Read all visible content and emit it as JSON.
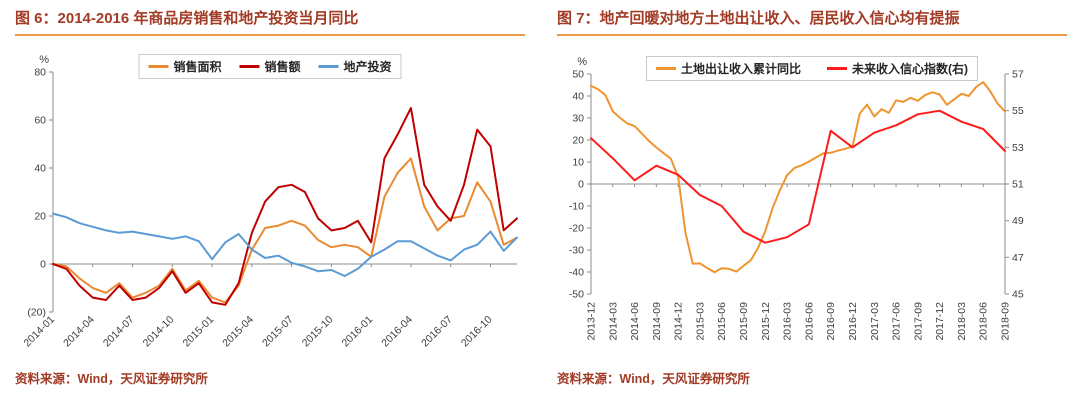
{
  "page": {
    "background": "#ffffff",
    "accent_rule_color": "#E89B49",
    "title_color": "#A23B25",
    "axis_text_color": "#404040",
    "axis_line_color": "#8c8c8c"
  },
  "footer": {
    "source_text": "资料来源：Wind，天风证券研究所"
  },
  "chart_data": [
    {
      "type": "line",
      "title": "图 6：2014-2016 年商品房销售和地产投资当月同比",
      "ylabel": "%",
      "grid": false,
      "legend_position": "top",
      "x_count": 36,
      "x_categories": [
        "2014-01",
        "2014-02",
        "2014-03",
        "2014-04",
        "2014-05",
        "2014-06",
        "2014-07",
        "2014-08",
        "2014-09",
        "2014-10",
        "2014-11",
        "2014-12",
        "2015-01",
        "2015-02",
        "2015-03",
        "2015-04",
        "2015-05",
        "2015-06",
        "2015-07",
        "2015-08",
        "2015-09",
        "2015-10",
        "2015-11",
        "2015-12",
        "2016-01",
        "2016-02",
        "2016-03",
        "2016-04",
        "2016-05",
        "2016-06",
        "2016-07",
        "2016-08",
        "2016-09",
        "2016-10",
        "2016-11",
        "2016-12"
      ],
      "x_tick_positions": [
        0,
        3,
        6,
        9,
        12,
        15,
        18,
        21,
        24,
        27,
        30,
        33
      ],
      "x_tick_labels": [
        "2014-01",
        "2014-04",
        "2014-07",
        "2014-10",
        "2015-01",
        "2015-04",
        "2015-07",
        "2015-10",
        "2016-01",
        "2016-04",
        "2016-07",
        "2016-10"
      ],
      "axes": {
        "left": {
          "min": -20,
          "max": 80,
          "ticks": [
            80,
            60,
            40,
            20,
            0,
            -20
          ],
          "labels": [
            "80",
            "60",
            "40",
            "20",
            "0",
            "(20)"
          ]
        },
        "right": null
      },
      "series": [
        {
          "name": "销售面积",
          "color": "#E98A30",
          "axis": "left",
          "x_step": 1,
          "values": [
            0,
            -1,
            -6,
            -10,
            -12,
            -8,
            -14,
            -12,
            -9,
            -2,
            -11,
            -7,
            -14,
            -16,
            -9,
            6,
            15,
            16,
            18,
            16,
            10,
            7,
            8,
            7,
            3,
            28,
            38,
            44,
            24,
            14,
            19,
            20,
            34,
            26,
            8,
            11
          ]
        },
        {
          "name": "销售额",
          "color": "#C00000",
          "axis": "left",
          "x_step": 1,
          "values": [
            0,
            -2,
            -9,
            -14,
            -15,
            -9,
            -15,
            -14,
            -10,
            -3,
            -12,
            -8,
            -16,
            -17,
            -8,
            13,
            26,
            32,
            33,
            30,
            19,
            14,
            15,
            18,
            9,
            44,
            54,
            65,
            33,
            24,
            18,
            33,
            56,
            49,
            14,
            19
          ]
        },
        {
          "name": "地产投资",
          "color": "#5B9BD5",
          "axis": "left",
          "x_step": 1,
          "values": [
            21,
            19.5,
            17,
            15.5,
            14,
            13,
            13.5,
            12.5,
            11.5,
            10.5,
            11.5,
            9.5,
            2,
            9,
            12.5,
            6,
            2.5,
            3.5,
            0.5,
            -1,
            -3,
            -2.5,
            -5,
            -2,
            3,
            6,
            9.5,
            9.5,
            6.5,
            3.5,
            1.5,
            6,
            8,
            13.5,
            5.5,
            11
          ]
        }
      ]
    },
    {
      "type": "line",
      "title": "图 7：地产回暖对地方土地出让收入、居民收入信心均有提振",
      "ylabel": "%",
      "grid": false,
      "legend_position": "top",
      "x_count": 58,
      "x_categories": [
        "2013-12",
        "2014-01",
        "2014-02",
        "2014-03",
        "2014-04",
        "2014-05",
        "2014-06",
        "2014-07",
        "2014-08",
        "2014-09",
        "2014-10",
        "2014-11",
        "2014-12",
        "2015-01",
        "2015-02",
        "2015-03",
        "2015-04",
        "2015-05",
        "2015-06",
        "2015-07",
        "2015-08",
        "2015-09",
        "2015-10",
        "2015-11",
        "2015-12",
        "2016-01",
        "2016-02",
        "2016-03",
        "2016-04",
        "2016-05",
        "2016-06",
        "2016-07",
        "2016-08",
        "2016-09",
        "2016-10",
        "2016-11",
        "2016-12",
        "2017-01",
        "2017-02",
        "2017-03",
        "2017-04",
        "2017-05",
        "2017-06",
        "2017-07",
        "2017-08",
        "2017-09",
        "2017-10",
        "2017-11",
        "2017-12",
        "2018-01",
        "2018-02",
        "2018-03",
        "2018-04",
        "2018-05",
        "2018-06",
        "2018-07",
        "2018-08",
        "2018-09"
      ],
      "x_tick_positions": [
        0,
        3,
        6,
        9,
        12,
        15,
        18,
        21,
        24,
        27,
        30,
        33,
        36,
        39,
        42,
        45,
        48,
        51,
        54,
        57
      ],
      "x_tick_labels": [
        "2013-12",
        "2014-03",
        "2014-06",
        "2014-09",
        "2014-12",
        "2015-03",
        "2015-06",
        "2015-09",
        "2015-12",
        "2016-03",
        "2016-06",
        "2016-09",
        "2016-12",
        "2017-03",
        "2017-06",
        "2017-09",
        "2017-12",
        "2018-03",
        "2018-06",
        "2018-09"
      ],
      "axes": {
        "left": {
          "min": -50,
          "max": 50,
          "ticks": [
            50,
            40,
            30,
            20,
            10,
            0,
            -10,
            -20,
            -30,
            -40,
            -50
          ],
          "labels": [
            "50",
            "40",
            "30",
            "20",
            "10",
            "0",
            "-10",
            "-20",
            "-30",
            "-40",
            "-50"
          ]
        },
        "right": {
          "min": 45,
          "max": 57,
          "ticks": [
            57,
            55,
            53,
            51,
            49,
            47,
            45
          ],
          "labels": [
            "57",
            "55",
            "53",
            "51",
            "49",
            "47",
            "45"
          ]
        }
      },
      "series": [
        {
          "name": "土地出让收入累计同比",
          "color": "#EF9530",
          "axis": "left",
          "x_step": 1,
          "values": [
            44.6,
            43,
            40.3,
            33,
            30,
            27.5,
            26.3,
            23,
            19.5,
            16.6,
            14,
            11.5,
            3.2,
            -22,
            -36.2,
            -36.1,
            -38.2,
            -40.1,
            -38.3,
            -38.6,
            -39.8,
            -37.2,
            -34.7,
            -29,
            -21.4,
            -11,
            -2.9,
            4,
            7.3,
            8.5,
            10.2,
            12.1,
            14,
            14.2,
            15.2,
            16,
            17,
            32,
            36.1,
            30.7,
            34,
            32.3,
            38,
            37.3,
            39.2,
            37.8,
            40.4,
            41.7,
            40.7,
            36,
            38.5,
            41,
            40,
            44,
            46.3,
            42,
            36.5,
            33
          ]
        },
        {
          "name": "未来收入信心指数(右)",
          "color": "#FF1A1A",
          "axis": "right",
          "x_step": 3,
          "values": [
            53.5,
            52.4,
            51.2,
            52,
            51.5,
            50.4,
            49.8,
            48.4,
            47.8,
            48.1,
            48.8,
            53.9,
            53,
            53.8,
            54.2,
            54.8,
            55,
            54.4,
            54,
            52.8
          ]
        }
      ]
    }
  ]
}
